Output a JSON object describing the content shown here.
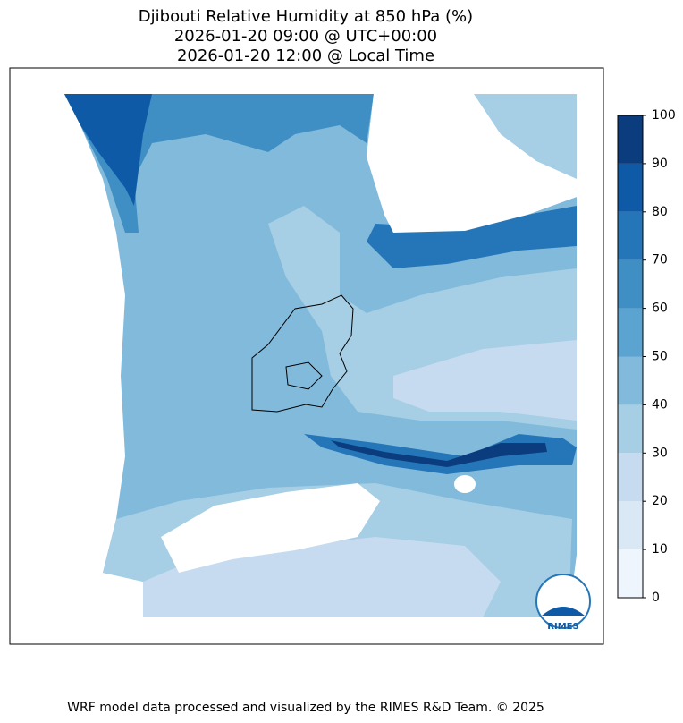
{
  "map": {
    "title": [
      "Djibouti Relative Humidity at 850 hPa (%)",
      "2026-01-20 09:00 @ UTC+00:00",
      "2026-01-20 12:00 @ Local Time"
    ],
    "colorbar": {
      "lim": [
        0,
        100
      ],
      "ticks": [
        0,
        10,
        20,
        30,
        40,
        50,
        60,
        70,
        80,
        90,
        100
      ],
      "colors": [
        "#eef5fc",
        "#dae8f6",
        "#c6dbef",
        "#a6cee4",
        "#82badb",
        "#5ba3d0",
        "#3f8fc5",
        "#2576b8",
        "#0e5aa7",
        "#0a3c7e"
      ]
    },
    "logo": "RIMES"
  },
  "footer": "WRF model data processed and visualized by the RIMES R&D Team. © 2025"
}
